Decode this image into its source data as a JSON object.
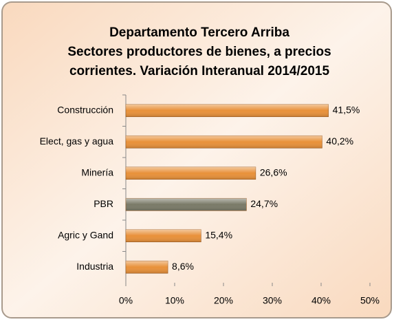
{
  "chart_data": {
    "type": "hbar",
    "title": [
      "Departamento Tercero Arriba",
      "Sectores productores de bienes, a precios",
      "corrientes. Variación Interanual 2014/2015"
    ],
    "categories": [
      "Construcción",
      "Elect, gas y agua",
      "Minería",
      "PBR",
      "Agric y Gand",
      "Industria"
    ],
    "values": [
      41.5,
      40.2,
      26.6,
      24.7,
      15.4,
      8.6
    ],
    "value_labels": [
      "41,5%",
      "40,2%",
      "26,6%",
      "24,7%",
      "15,4%",
      "8,6%"
    ],
    "colors": [
      "#e8913a",
      "#e8913a",
      "#e8913a",
      "#7a7a68",
      "#e8913a",
      "#e8913a"
    ],
    "xlim": [
      0,
      50
    ],
    "xticks": [
      {
        "value": 0,
        "label": "0%"
      },
      {
        "value": 10,
        "label": "10%"
      },
      {
        "value": 20,
        "label": "20%"
      },
      {
        "value": 30,
        "label": "30%"
      },
      {
        "value": 40,
        "label": "40%"
      },
      {
        "value": 50,
        "label": "50%"
      }
    ],
    "grid": false
  }
}
